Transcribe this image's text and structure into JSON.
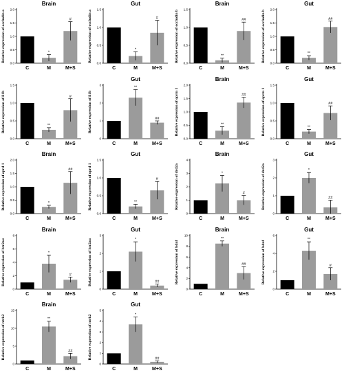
{
  "chart_data": [
    {
      "type": "bar",
      "title": "Brain",
      "ylabel": "Relative expression of occludin a",
      "categories": [
        "C",
        "M",
        "M+S"
      ],
      "values": [
        1.0,
        0.2,
        1.2
      ],
      "errors": [
        0,
        0.12,
        0.35
      ],
      "annotations": [
        "",
        "*",
        "#"
      ],
      "ylim": [
        0,
        2.0
      ],
      "yticks": [
        "0.0",
        "0.5",
        "1.0",
        "1.5",
        "2.0"
      ]
    },
    {
      "type": "bar",
      "title": "Gut",
      "ylabel": "Relative expression of occludin a",
      "categories": [
        "C",
        "M",
        "M+S"
      ],
      "values": [
        1.0,
        0.2,
        0.85
      ],
      "errors": [
        0,
        0.12,
        0.35
      ],
      "annotations": [
        "",
        "*",
        "#"
      ],
      "ylim": [
        0,
        1.5
      ],
      "yticks": [
        "0.0",
        "0.5",
        "1.0",
        "1.5"
      ]
    },
    {
      "type": "bar",
      "title": "Brain",
      "ylabel": "Relative expression of occludin b",
      "categories": [
        "C",
        "M",
        "M+S"
      ],
      "values": [
        1.0,
        0.08,
        0.9
      ],
      "errors": [
        0,
        0.06,
        0.25
      ],
      "annotations": [
        "",
        "**",
        "##"
      ],
      "ylim": [
        0,
        1.5
      ],
      "yticks": [
        "0.0",
        "0.5",
        "1.0",
        "1.5"
      ]
    },
    {
      "type": "bar",
      "title": "Gut",
      "ylabel": "Relative expression of occludin b",
      "categories": [
        "C",
        "M",
        "M+S"
      ],
      "values": [
        1.0,
        0.2,
        1.35
      ],
      "errors": [
        0,
        0.08,
        0.22
      ],
      "annotations": [
        "",
        "**",
        "##"
      ],
      "ylim": [
        0,
        2.0
      ],
      "yticks": [
        "0.0",
        "0.5",
        "1.0",
        "1.5",
        "2.0"
      ]
    },
    {
      "type": "bar",
      "title": "",
      "ylabel": "Relative expression of il1b",
      "categories": [
        "C",
        "M",
        "M+S"
      ],
      "values": [
        1.0,
        0.25,
        0.8
      ],
      "errors": [
        0,
        0.06,
        0.32
      ],
      "annotations": [
        "",
        "**",
        "#"
      ],
      "ylim": [
        0,
        1.5
      ],
      "yticks": [
        "0.0",
        "0.5",
        "1.0",
        "1.5"
      ]
    },
    {
      "type": "bar",
      "title": "Gut",
      "ylabel": "Relative expression of il1b",
      "categories": [
        "C",
        "M",
        "M+S"
      ],
      "values": [
        1.0,
        2.3,
        0.9
      ],
      "errors": [
        0,
        0.45,
        0.1
      ],
      "annotations": [
        "",
        "**",
        "##"
      ],
      "ylim": [
        0,
        3
      ],
      "yticks": [
        "0",
        "1",
        "2",
        "3"
      ]
    },
    {
      "type": "bar",
      "title": "Brain",
      "ylabel": "Relative expression of oprm 1",
      "categories": [
        "C",
        "M",
        "M+S"
      ],
      "values": [
        1.0,
        0.3,
        1.35
      ],
      "errors": [
        0,
        0.15,
        0.2
      ],
      "annotations": [
        "",
        "**",
        "##"
      ],
      "ylim": [
        0,
        2.0
      ],
      "yticks": [
        "0.0",
        "0.5",
        "1.0",
        "1.5",
        "2.0"
      ]
    },
    {
      "type": "bar",
      "title": "Gut",
      "ylabel": "Relative expression of oprm 1",
      "categories": [
        "C",
        "M",
        "M+S"
      ],
      "values": [
        1.0,
        0.2,
        0.72
      ],
      "errors": [
        0,
        0.06,
        0.2
      ],
      "annotations": [
        "",
        "**",
        "##"
      ],
      "ylim": [
        0,
        1.5
      ],
      "yticks": [
        "0.0",
        "0.5",
        "1.0",
        "1.5"
      ]
    },
    {
      "type": "bar",
      "title": "Brain",
      "ylabel": "Relative expression of oprd 1",
      "categories": [
        "C",
        "M",
        "M+S"
      ],
      "values": [
        1.0,
        0.25,
        1.15
      ],
      "errors": [
        0,
        0.06,
        0.42
      ],
      "annotations": [
        "",
        "*",
        "##"
      ],
      "ylim": [
        0,
        2.0
      ],
      "yticks": [
        "0.0",
        "0.5",
        "1.0",
        "1.5",
        "2.0"
      ]
    },
    {
      "type": "bar",
      "title": "Gut",
      "ylabel": "Relative expression of oprd 1",
      "categories": [
        "C",
        "M",
        "M+S"
      ],
      "values": [
        1.0,
        0.2,
        0.65
      ],
      "errors": [
        0,
        0.06,
        0.25
      ],
      "annotations": [
        "",
        "**",
        "#"
      ],
      "ylim": [
        0,
        1.5
      ],
      "yticks": [
        "0.0",
        "0.5",
        "1.0",
        "1.5"
      ]
    },
    {
      "type": "bar",
      "title": "Brain",
      "ylabel": "Relative expression of drd2a",
      "categories": [
        "C",
        "M",
        "M+S"
      ],
      "values": [
        1.0,
        2.25,
        1.0
      ],
      "errors": [
        0,
        0.6,
        0.35
      ],
      "annotations": [
        "",
        "*",
        "#"
      ],
      "ylim": [
        0,
        4
      ],
      "yticks": [
        "0",
        "1",
        "2",
        "3",
        "4"
      ]
    },
    {
      "type": "bar",
      "title": "Gut",
      "ylabel": "Relative expression of drd2a",
      "categories": [
        "C",
        "M",
        "M+S"
      ],
      "values": [
        1.0,
        2.0,
        0.35
      ],
      "errors": [
        0,
        0.3,
        0.4
      ],
      "annotations": [
        "",
        "*",
        "##"
      ],
      "ylim": [
        0,
        3
      ],
      "yticks": [
        "0",
        "1",
        "2",
        "3"
      ]
    },
    {
      "type": "bar",
      "title": "Brain",
      "ylabel": "Relative expression of htr2aα",
      "categories": [
        "C",
        "M",
        "M+S"
      ],
      "values": [
        1.0,
        3.8,
        1.4
      ],
      "errors": [
        0,
        1.3,
        0.4
      ],
      "annotations": [
        "",
        "*",
        "#"
      ],
      "ylim": [
        0,
        8
      ],
      "yticks": [
        "0",
        "2",
        "4",
        "6",
        "8"
      ]
    },
    {
      "type": "bar",
      "title": "Gut",
      "ylabel": "Relative expression of htr2aα",
      "categories": [
        "C",
        "M",
        "M+S"
      ],
      "values": [
        1.0,
        2.1,
        0.2
      ],
      "errors": [
        0,
        0.55,
        0.08
      ],
      "annotations": [
        "",
        "*",
        "##"
      ],
      "ylim": [
        0,
        3
      ],
      "yticks": [
        "0",
        "1",
        "2",
        "3"
      ]
    },
    {
      "type": "bar",
      "title": "Brain",
      "ylabel": "Relative expression of bdnf",
      "categories": [
        "C",
        "M",
        "M+S"
      ],
      "values": [
        1.0,
        8.5,
        3.0
      ],
      "errors": [
        0,
        0.5,
        1.2
      ],
      "annotations": [
        "",
        "**",
        "##"
      ],
      "ylim": [
        0,
        10
      ],
      "yticks": [
        "0",
        "2",
        "4",
        "6",
        "8",
        "10"
      ]
    },
    {
      "type": "bar",
      "title": "Gut",
      "ylabel": "Relative expression of bdnf",
      "categories": [
        "C",
        "M",
        "M+S"
      ],
      "values": [
        1.0,
        4.3,
        1.7
      ],
      "errors": [
        0,
        1.0,
        0.7
      ],
      "annotations": [
        "",
        "**",
        "#"
      ],
      "ylim": [
        0,
        6
      ],
      "yticks": [
        "0",
        "2",
        "4",
        "6"
      ]
    },
    {
      "type": "bar",
      "title": "Brain",
      "ylabel": "Relative expression of ntrk2",
      "categories": [
        "C",
        "M",
        "M+S"
      ],
      "values": [
        1.0,
        10.5,
        2.2
      ],
      "errors": [
        0,
        1.5,
        0.8
      ],
      "annotations": [
        "",
        "**",
        "##"
      ],
      "ylim": [
        0,
        15
      ],
      "yticks": [
        "0",
        "5",
        "10",
        "15"
      ]
    },
    {
      "type": "bar",
      "title": "Gut",
      "ylabel": "Relative expression of ntrk2",
      "categories": [
        "C",
        "M",
        "M+S"
      ],
      "values": [
        1.0,
        3.7,
        0.2
      ],
      "errors": [
        0,
        0.7,
        0.1
      ],
      "annotations": [
        "",
        "*",
        "##"
      ],
      "ylim": [
        0,
        5
      ],
      "yticks": [
        "0",
        "1",
        "2",
        "3",
        "4",
        "5"
      ]
    }
  ],
  "colors": {
    "C": "#000000",
    "M": "#9b9b9b",
    "M+S": "#9b9b9b",
    "axis": "#000000"
  }
}
